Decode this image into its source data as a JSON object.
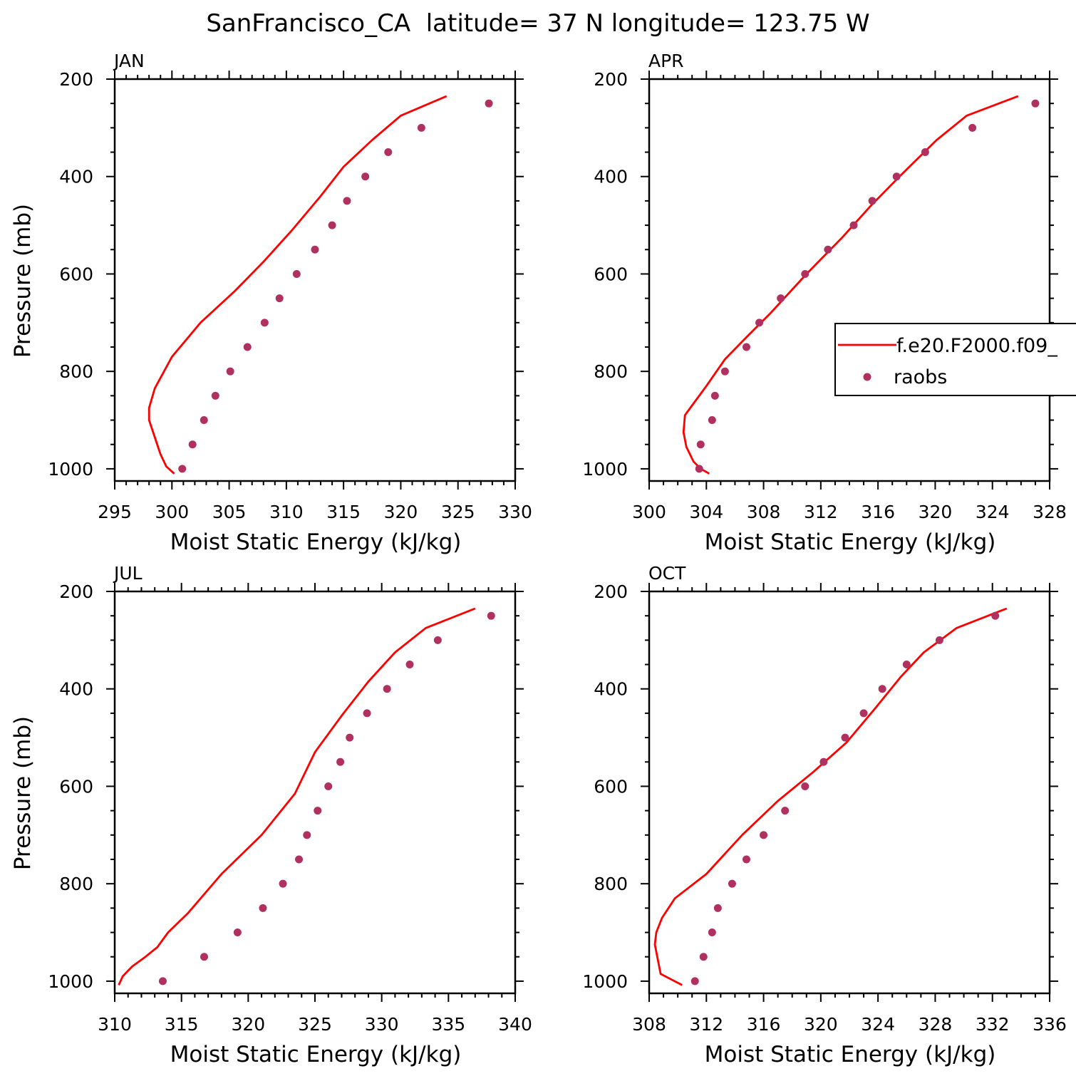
{
  "title": "SanFrancisco_CA  latitude= 37 N longitude= 123.75 W",
  "colors": {
    "model": "#ff0000",
    "obs": "#b03060",
    "axis": "#000000"
  },
  "legend": {
    "placement": "right of APR panel",
    "model_label": "f.e20.F2000.f09_",
    "obs_label": "raobs"
  },
  "chart_data": [
    {
      "type": "line",
      "panel_label": "JAN",
      "xlabel": "Moist Static Energy (kJ/kg)",
      "ylabel": "Pressure (mb)",
      "xlim": [
        295,
        330
      ],
      "ylim": [
        1025,
        200
      ],
      "xticks": [
        295,
        300,
        305,
        310,
        315,
        320,
        325,
        330
      ],
      "xtick_labels": [
        "295",
        "300",
        "305",
        "310",
        "315",
        "320",
        "325",
        "330"
      ],
      "x_minor": 1,
      "yticks": [
        200,
        400,
        600,
        800,
        1000
      ],
      "ytick_labels": [
        "200",
        "400",
        "600",
        "800",
        "1000"
      ],
      "y_minor": 50,
      "series": [
        {
          "name": "f.e20.F2000.f09_",
          "kind": "line",
          "x": [
            324.0,
            320.0,
            317.5,
            315.0,
            313.0,
            310.5,
            308.0,
            305.5,
            302.5,
            300.0,
            298.5,
            298.0,
            298.0,
            298.5,
            299.0,
            299.5,
            300.2
          ],
          "y": [
            235,
            275,
            325,
            380,
            440,
            510,
            575,
            635,
            700,
            770,
            835,
            875,
            900,
            935,
            970,
            995,
            1010
          ]
        },
        {
          "name": "raobs",
          "kind": "scatter",
          "x": [
            327.7,
            321.8,
            318.9,
            316.9,
            315.3,
            314.0,
            312.5,
            310.9,
            309.4,
            308.1,
            306.6,
            305.1,
            303.8,
            302.8,
            301.8,
            300.9
          ],
          "y": [
            250,
            300,
            350,
            400,
            450,
            500,
            550,
            600,
            650,
            700,
            750,
            800,
            850,
            900,
            950,
            1000
          ]
        }
      ]
    },
    {
      "type": "line",
      "panel_label": "APR",
      "xlabel": "Moist Static Energy (kJ/kg)",
      "ylabel": "",
      "xlim": [
        300,
        328
      ],
      "ylim": [
        1025,
        200
      ],
      "xticks": [
        300,
        304,
        308,
        312,
        316,
        320,
        324,
        328
      ],
      "xtick_labels": [
        "300",
        "304",
        "308",
        "312",
        "316",
        "320",
        "324",
        "328"
      ],
      "x_minor": 1,
      "yticks": [
        200,
        400,
        600,
        800,
        1000
      ],
      "ytick_labels": [
        "200",
        "400",
        "600",
        "800",
        "1000"
      ],
      "y_minor": 50,
      "series": [
        {
          "name": "f.e20.F2000.f09_",
          "kind": "line",
          "x": [
            325.8,
            322.2,
            320.1,
            317.5,
            315.5,
            313.5,
            311.0,
            308.5,
            306.8,
            305.3,
            304.0,
            303.0,
            302.5,
            302.4,
            302.6,
            303.1,
            303.6,
            304.2
          ],
          "y": [
            235,
            275,
            325,
            400,
            460,
            525,
            600,
            680,
            730,
            775,
            830,
            870,
            890,
            925,
            955,
            985,
            1000,
            1010
          ]
        },
        {
          "name": "raobs",
          "kind": "scatter",
          "x": [
            327.0,
            322.6,
            319.3,
            317.3,
            315.6,
            314.3,
            312.5,
            310.9,
            309.2,
            307.7,
            306.8,
            305.3,
            304.6,
            304.4,
            303.6,
            303.5
          ],
          "y": [
            250,
            300,
            350,
            400,
            450,
            500,
            550,
            600,
            650,
            700,
            750,
            800,
            850,
            900,
            950,
            1000
          ]
        }
      ]
    },
    {
      "type": "line",
      "panel_label": "JUL",
      "xlabel": "Moist Static Energy (kJ/kg)",
      "ylabel": "Pressure (mb)",
      "xlim": [
        310,
        340
      ],
      "ylim": [
        1025,
        200
      ],
      "xticks": [
        310,
        315,
        320,
        325,
        330,
        335,
        340
      ],
      "xtick_labels": [
        "310",
        "315",
        "320",
        "325",
        "330",
        "335",
        "340"
      ],
      "x_minor": 1,
      "yticks": [
        200,
        400,
        600,
        800,
        1000
      ],
      "ytick_labels": [
        "200",
        "400",
        "600",
        "800",
        "1000"
      ],
      "y_minor": 50,
      "series": [
        {
          "name": "f.e20.F2000.f09_",
          "kind": "line",
          "x": [
            337.0,
            333.3,
            331.0,
            329.0,
            327.0,
            325.0,
            323.5,
            321.0,
            318.0,
            315.5,
            314.0,
            313.2,
            312.3,
            311.3,
            310.6,
            310.3
          ],
          "y": [
            235,
            275,
            325,
            385,
            455,
            530,
            615,
            700,
            780,
            860,
            900,
            930,
            950,
            970,
            990,
            1008
          ]
        },
        {
          "name": "raobs",
          "kind": "scatter",
          "x": [
            338.2,
            334.2,
            332.1,
            330.4,
            328.9,
            327.6,
            326.9,
            326.0,
            325.2,
            324.4,
            323.8,
            322.6,
            321.1,
            319.2,
            316.7,
            313.6
          ],
          "y": [
            250,
            300,
            350,
            400,
            450,
            500,
            550,
            600,
            650,
            700,
            750,
            800,
            850,
            900,
            950,
            1000
          ]
        }
      ]
    },
    {
      "type": "line",
      "panel_label": "OCT",
      "xlabel": "Moist Static Energy (kJ/kg)",
      "ylabel": "",
      "xlim": [
        308,
        336
      ],
      "ylim": [
        1025,
        200
      ],
      "xticks": [
        308,
        312,
        316,
        320,
        324,
        328,
        332,
        336
      ],
      "xtick_labels": [
        "308",
        "312",
        "316",
        "320",
        "324",
        "328",
        "332",
        "336"
      ],
      "x_minor": 1,
      "yticks": [
        200,
        400,
        600,
        800,
        1000
      ],
      "ytick_labels": [
        "200",
        "400",
        "600",
        "800",
        "1000"
      ],
      "y_minor": 50,
      "series": [
        {
          "name": "f.e20.F2000.f09_",
          "kind": "line",
          "x": [
            333.0,
            329.5,
            327.2,
            325.6,
            323.8,
            321.8,
            319.5,
            317.0,
            314.5,
            312.0,
            309.8,
            308.9,
            308.5,
            308.4,
            308.8,
            310.3
          ],
          "y": [
            235,
            275,
            325,
            375,
            440,
            510,
            570,
            630,
            700,
            780,
            830,
            870,
            900,
            925,
            985,
            1008
          ]
        },
        {
          "name": "raobs",
          "kind": "scatter",
          "x": [
            332.2,
            328.3,
            326.0,
            324.3,
            323.0,
            321.7,
            320.2,
            318.9,
            317.5,
            316.0,
            314.8,
            313.8,
            312.8,
            312.4,
            311.8,
            311.2
          ],
          "y": [
            250,
            300,
            350,
            400,
            450,
            500,
            550,
            600,
            650,
            700,
            750,
            800,
            850,
            900,
            950,
            1000
          ]
        }
      ]
    }
  ]
}
